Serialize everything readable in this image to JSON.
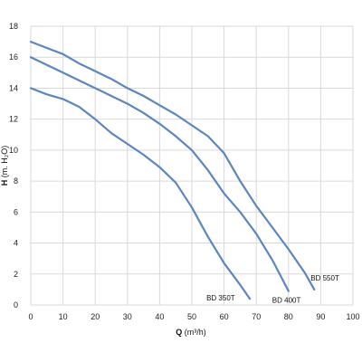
{
  "chart_data": {
    "type": "line",
    "title": "",
    "xlabel": "Q",
    "xlabel_unit": "(m³/h)",
    "ylabel": "H",
    "ylabel_unit": "(m. H₂O)",
    "xlim": [
      0,
      100
    ],
    "ylim": [
      0,
      18
    ],
    "xticks": [
      0,
      10,
      20,
      30,
      40,
      50,
      60,
      70,
      80,
      90,
      100
    ],
    "yticks": [
      0,
      2,
      4,
      6,
      8,
      10,
      12,
      14,
      16,
      18
    ],
    "grid": true,
    "line_color": "#5b86c3",
    "series": [
      {
        "name": "BD 350T",
        "x": [
          0,
          5,
          10,
          15,
          20,
          25,
          30,
          35,
          40,
          45,
          50,
          55,
          60,
          65,
          68
        ],
        "y": [
          14.0,
          13.6,
          13.3,
          12.8,
          12.0,
          11.1,
          10.4,
          9.7,
          8.9,
          7.9,
          6.3,
          4.4,
          2.7,
          1.3,
          0.4
        ]
      },
      {
        "name": "BD 400T",
        "x": [
          0,
          5,
          10,
          15,
          20,
          25,
          30,
          35,
          40,
          45,
          50,
          55,
          60,
          65,
          70,
          75,
          80
        ],
        "y": [
          16.0,
          15.5,
          15.0,
          14.5,
          14.0,
          13.5,
          13.0,
          12.4,
          11.7,
          10.9,
          10.0,
          8.7,
          7.2,
          6.0,
          4.6,
          2.9,
          0.9
        ]
      },
      {
        "name": "BD 550T",
        "x": [
          0,
          5,
          10,
          15,
          20,
          25,
          30,
          35,
          40,
          45,
          50,
          55,
          60,
          65,
          70,
          75,
          80,
          85,
          88
        ],
        "y": [
          17.0,
          16.6,
          16.2,
          15.6,
          15.1,
          14.6,
          14.0,
          13.5,
          12.9,
          12.3,
          11.6,
          10.9,
          9.8,
          8.0,
          6.4,
          5.0,
          3.6,
          2.1,
          1.0
        ]
      }
    ]
  }
}
